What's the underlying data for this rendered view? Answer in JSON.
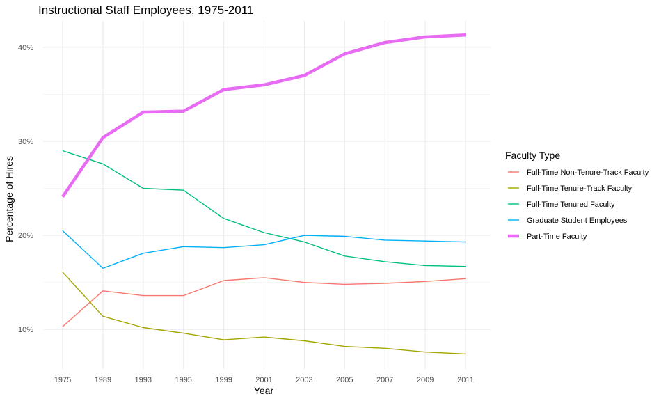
{
  "chart_data": {
    "type": "line",
    "title": "Instructional Staff Employees, 1975-2011",
    "xlabel": "Year",
    "ylabel": "Percentage of Hires",
    "categories": [
      "1975",
      "1989",
      "1993",
      "1995",
      "1999",
      "2001",
      "2003",
      "2005",
      "2007",
      "2009",
      "2011"
    ],
    "ylim": [
      5.8,
      42.8
    ],
    "yticks": [
      10,
      20,
      30,
      40
    ],
    "ytick_labels": [
      "10%",
      "20%",
      "30%",
      "40%"
    ],
    "grid": true,
    "legend": {
      "title": "Faculty Type",
      "position": "right"
    },
    "series": [
      {
        "name": "Full-Time Non-Tenure-Track Faculty",
        "color": "#F8766D",
        "values": [
          10.3,
          14.1,
          13.6,
          13.6,
          15.2,
          15.5,
          15.0,
          14.8,
          14.9,
          15.1,
          15.4
        ]
      },
      {
        "name": "Full-Time Tenure-Track Faculty",
        "color": "#A3A500",
        "values": [
          16.1,
          11.4,
          10.2,
          9.6,
          8.9,
          9.2,
          8.8,
          8.2,
          8.0,
          7.6,
          7.4
        ]
      },
      {
        "name": "Full-Time Tenured Faculty",
        "color": "#00BF7D",
        "values": [
          29.0,
          27.6,
          25.0,
          24.8,
          21.8,
          20.3,
          19.3,
          17.8,
          17.2,
          16.8,
          16.7
        ]
      },
      {
        "name": "Graduate Student Employees",
        "color": "#00B0F6",
        "values": [
          20.5,
          16.5,
          18.1,
          18.8,
          18.7,
          19.0,
          20.0,
          19.9,
          19.5,
          19.4,
          19.3
        ]
      },
      {
        "name": "Part-Time Faculty",
        "color": "#E76BF3",
        "highlight": true,
        "values": [
          24.1,
          30.4,
          33.1,
          33.2,
          35.5,
          36.0,
          37.0,
          39.3,
          40.5,
          41.1,
          41.3
        ]
      }
    ]
  }
}
